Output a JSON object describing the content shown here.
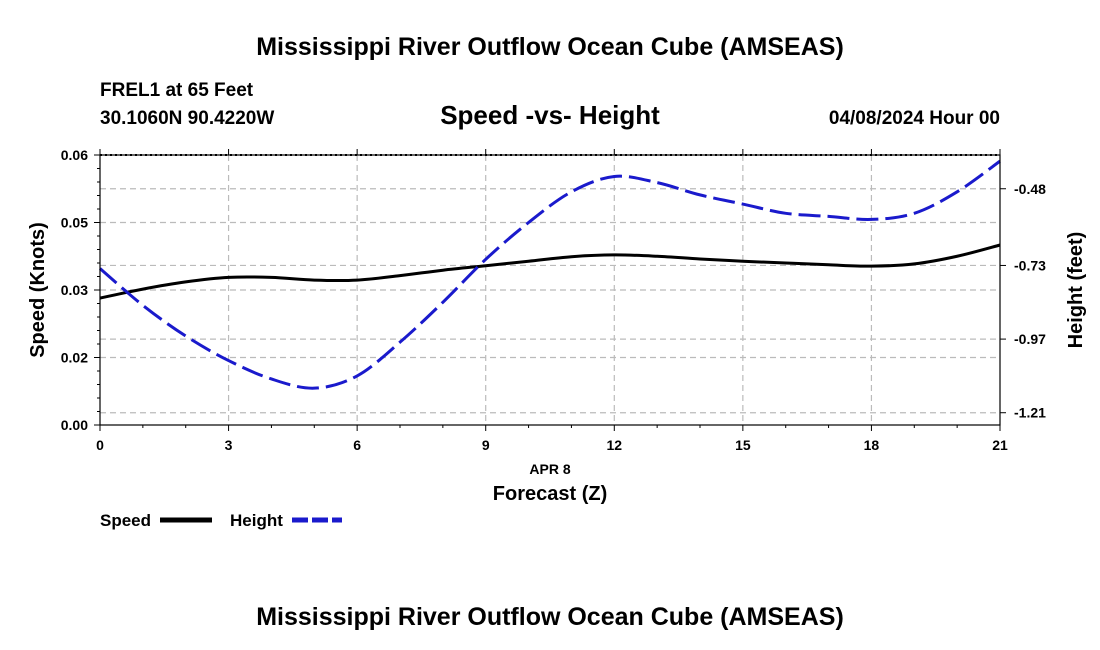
{
  "page": {
    "title_top": "Mississippi River Outflow Ocean Cube (AMSEAS)",
    "title_bottom": "Mississippi River Outflow Ocean Cube (AMSEAS)",
    "station": "FREL1 at 65 Feet",
    "coords": "30.1060N  90.4220W",
    "datetime": "04/08/2024 Hour 00"
  },
  "colors": {
    "speed": "#000000",
    "height": "#1a1acc",
    "grid": "#bbbbbb"
  },
  "chart_data": {
    "type": "line",
    "title": "Speed -vs- Height",
    "x_ticks": [
      "0",
      "3",
      "6",
      "9",
      "12",
      "15",
      "18",
      "21"
    ],
    "x_date_label": "APR 8",
    "xlabel": "Forecast (Z)",
    "ylabel_left": "Speed (Knots)",
    "ylabel_right": "Height (feet)",
    "xlim": [
      0,
      21
    ],
    "ylim_left": [
      0,
      0.06
    ],
    "ylim_right": [
      -1.25,
      -0.37
    ],
    "y_left_ticks": [
      "0.00",
      "0.02",
      "0.03",
      "0.05",
      "0.06"
    ],
    "y_left_tick_values": [
      0,
      0.015,
      0.03,
      0.045,
      0.06
    ],
    "y_right_ticks": [
      "-0.48",
      "-0.73",
      "-0.97",
      "-1.21"
    ],
    "y_right_tick_values": [
      -0.48,
      -0.73,
      -0.97,
      -1.21
    ],
    "legend": [
      "Speed",
      "Height"
    ],
    "series": [
      {
        "name": "Speed",
        "axis": "left",
        "style": "solid",
        "x": [
          0,
          1,
          2,
          3,
          4,
          5,
          6,
          7,
          8,
          9,
          10,
          11,
          12,
          13,
          14,
          15,
          16,
          17,
          18,
          19,
          20,
          21
        ],
        "values": [
          0.0282,
          0.0302,
          0.0318,
          0.0328,
          0.0328,
          0.0322,
          0.0322,
          0.0332,
          0.0344,
          0.0354,
          0.0364,
          0.0374,
          0.0378,
          0.0375,
          0.0369,
          0.0364,
          0.036,
          0.0356,
          0.0353,
          0.0358,
          0.0375,
          0.04
        ]
      },
      {
        "name": "Height",
        "axis": "right",
        "style": "dashed",
        "x": [
          0,
          1,
          2,
          3,
          4,
          5,
          6,
          7,
          8,
          9,
          10,
          11,
          12,
          13,
          14,
          15,
          16,
          17,
          18,
          19,
          20,
          21
        ],
        "values": [
          -0.74,
          -0.86,
          -0.96,
          -1.04,
          -1.1,
          -1.13,
          -1.09,
          -0.98,
          -0.85,
          -0.71,
          -0.59,
          -0.49,
          -0.44,
          -0.46,
          -0.5,
          -0.53,
          -0.56,
          -0.57,
          -0.58,
          -0.56,
          -0.49,
          -0.39
        ]
      }
    ]
  }
}
